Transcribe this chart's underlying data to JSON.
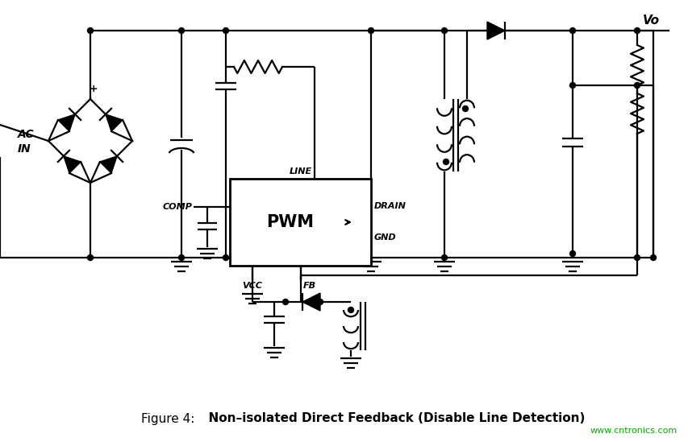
{
  "fig_width": 8.54,
  "fig_height": 5.49,
  "bg_color": "#ffffff",
  "line_color": "#000000",
  "line_width": 1.6,
  "caption_normal": "Figure 4:",
  "caption_bold": "  Non–isolated Direct Feedback (Disable Line Detection)",
  "watermark": "www.cntronics.com",
  "watermark_color": "#00aa00"
}
